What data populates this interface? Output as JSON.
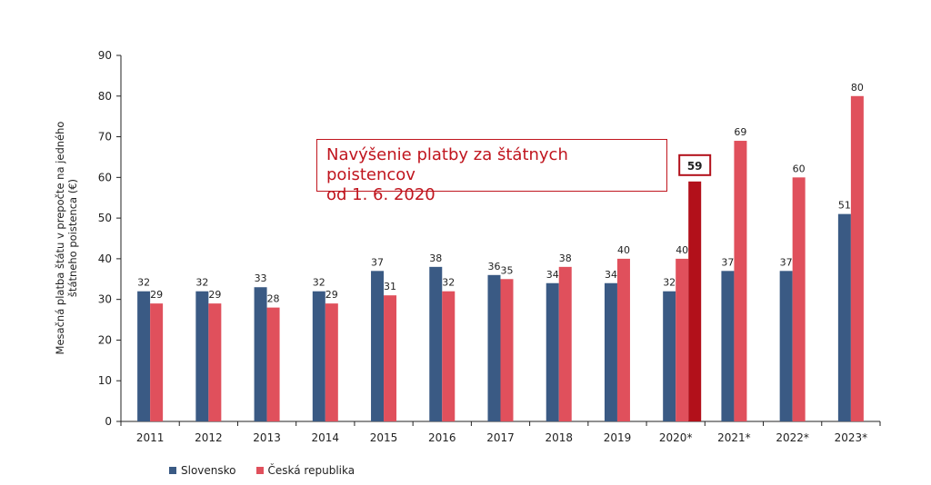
{
  "chart_data": {
    "type": "bar",
    "ylabel_lines": [
      "Mesačná platba štátu v prepočte na jedného",
      "štátneho poistenca (€)"
    ],
    "ylim": [
      0,
      90
    ],
    "yticks": [
      0,
      10,
      20,
      30,
      40,
      50,
      60,
      70,
      80,
      90
    ],
    "categories": [
      "2011",
      "2012",
      "2013",
      "2014",
      "2015",
      "2016",
      "2017",
      "2018",
      "2019",
      "2020*",
      "2021*",
      "2022*",
      "2023*"
    ],
    "series": [
      {
        "name": "Slovensko",
        "color": "#3a5a84",
        "values": [
          32,
          32,
          33,
          32,
          37,
          38,
          36,
          34,
          34,
          32,
          37,
          37,
          51
        ],
        "labels": [
          "32",
          "32",
          "33",
          "32",
          "37",
          "38",
          "36",
          "34",
          "34",
          "32",
          "37",
          "37",
          "51"
        ]
      },
      {
        "name": "Česká republika",
        "color": "#e0505c",
        "values": [
          29,
          29,
          28,
          29,
          31,
          32,
          35,
          38,
          40,
          40,
          69,
          60,
          80
        ],
        "labels": [
          "29",
          "29",
          "28",
          "29",
          "31",
          "32",
          "35",
          "38",
          "40",
          "40",
          "69",
          "60",
          "80"
        ]
      }
    ],
    "extra_bar": {
      "category": "2020*",
      "value": 59,
      "label": "59",
      "color": "#b2101a"
    },
    "annotation": [
      "Navýšenie platby za štátnych poistencov",
      "od 1. 6. 2020"
    ],
    "legend_position": "bottom-left",
    "grid": false
  }
}
